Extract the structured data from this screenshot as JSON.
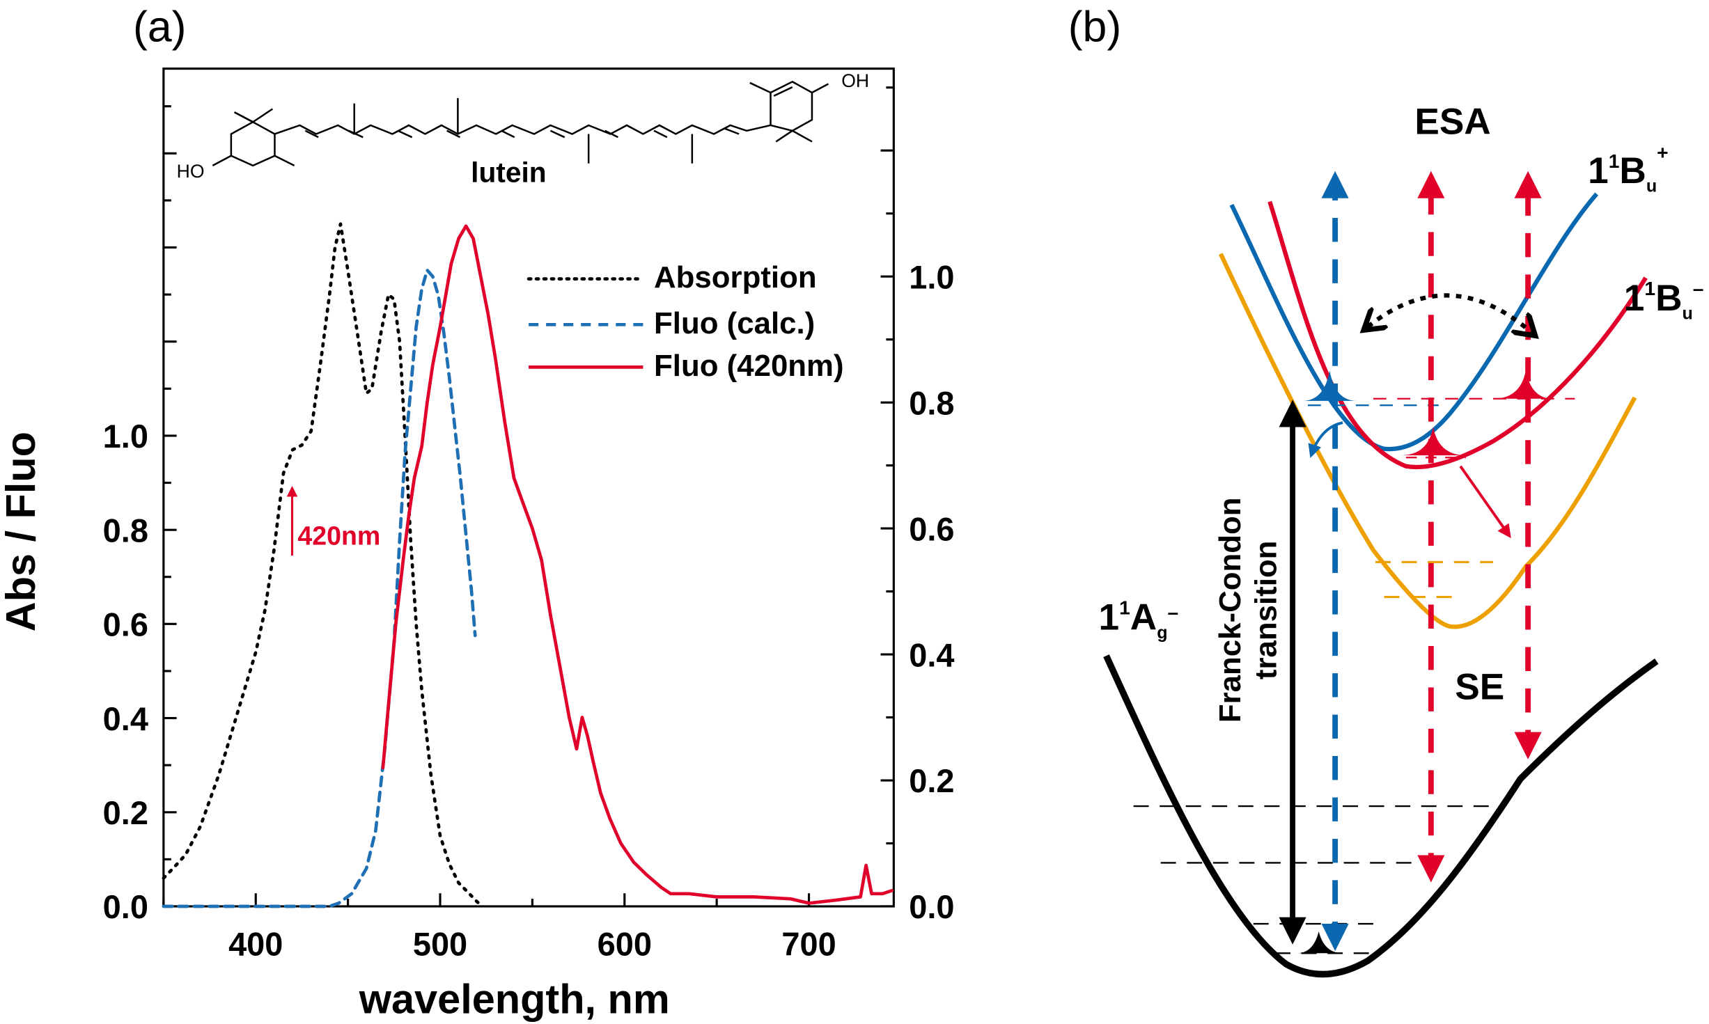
{
  "panels": {
    "a": "(a)",
    "b": "(b)"
  },
  "molecule": {
    "name": "lutein",
    "ho": "HO",
    "oh": "OH"
  },
  "annotation_420": "420nm",
  "colors": {
    "absorption": "#000000",
    "fluo_calc": "#1f6fb5",
    "fluo_420": "#e0002a",
    "orange": "#eea000",
    "blue": "#0a68b0",
    "red": "#e0002a"
  },
  "chart_data": {
    "type": "line",
    "xlabel": "wavelength, nm",
    "ylabel": "Abs / Fluo",
    "xlim": [
      350,
      746
    ],
    "ylim_left": [
      0,
      1.78
    ],
    "ylim_right": [
      0,
      1.33
    ],
    "x_ticks": [
      400,
      500,
      600,
      700
    ],
    "y_ticks_left": [
      "0.0",
      "0.2",
      "0.4",
      "0.6",
      "0.8",
      "1.0"
    ],
    "y_ticks_right": [
      "0.0",
      "0.2",
      "0.4",
      "0.6",
      "0.8",
      "1.0"
    ],
    "legend_position": "top-right",
    "series": [
      {
        "name": "Absorption",
        "axis": "left",
        "style": "dotted",
        "x": [
          350,
          355,
          362,
          370,
          380,
          390,
          400,
          405,
          410,
          415,
          420,
          425,
          430,
          435,
          440,
          443,
          446,
          450,
          455,
          460,
          463,
          468,
          472,
          475,
          478,
          481,
          484,
          487,
          490,
          495,
          500,
          505,
          510,
          515,
          520,
          523
        ],
        "y": [
          0.06,
          0.08,
          0.11,
          0.17,
          0.28,
          0.41,
          0.54,
          0.63,
          0.76,
          0.92,
          0.97,
          0.98,
          1.01,
          1.15,
          1.3,
          1.4,
          1.45,
          1.35,
          1.22,
          1.09,
          1.1,
          1.22,
          1.3,
          1.29,
          1.2,
          1.0,
          0.78,
          0.6,
          0.46,
          0.28,
          0.15,
          0.09,
          0.05,
          0.03,
          0.01,
          0.0
        ]
      },
      {
        "name": "Fluo (calc.)",
        "axis": "right",
        "style": "dashed",
        "x": [
          350,
          400,
          440,
          445,
          452,
          460,
          465,
          470,
          475,
          478,
          481,
          484,
          487,
          490,
          493,
          496,
          499,
          502,
          505,
          508,
          511,
          514,
          517,
          519
        ],
        "y": [
          0,
          0,
          0,
          0.005,
          0.02,
          0.06,
          0.12,
          0.25,
          0.42,
          0.58,
          0.72,
          0.82,
          0.92,
          0.98,
          1.01,
          1.0,
          0.97,
          0.91,
          0.84,
          0.76,
          0.68,
          0.59,
          0.5,
          0.43
        ]
      },
      {
        "name": "Fluo (420nm)",
        "axis": "right",
        "style": "solid",
        "x": [
          469,
          472,
          476,
          480,
          483,
          486,
          490,
          493,
          496,
          500,
          503,
          506,
          510,
          514,
          518,
          522,
          526,
          530,
          535,
          540,
          545,
          550,
          555,
          560,
          565,
          570,
          574,
          577,
          580,
          583,
          587,
          592,
          598,
          605,
          612,
          620,
          625,
          635,
          650,
          670,
          690,
          700,
          715,
          728,
          731,
          734,
          740,
          745
        ],
        "y": [
          0.22,
          0.32,
          0.45,
          0.55,
          0.62,
          0.68,
          0.73,
          0.8,
          0.86,
          0.92,
          0.97,
          1.02,
          1.06,
          1.08,
          1.06,
          1.0,
          0.94,
          0.87,
          0.77,
          0.68,
          0.64,
          0.6,
          0.55,
          0.46,
          0.38,
          0.3,
          0.25,
          0.3,
          0.27,
          0.23,
          0.18,
          0.14,
          0.1,
          0.07,
          0.05,
          0.03,
          0.02,
          0.02,
          0.015,
          0.015,
          0.012,
          0.005,
          0.01,
          0.015,
          0.065,
          0.02,
          0.02,
          0.025
        ]
      }
    ]
  },
  "diagram": {
    "esa": "ESA",
    "se": "SE",
    "fc_line1": "Franck-Condon",
    "fc_line2": "transition",
    "state_bu_plus": {
      "main": "1",
      "sup1": "1",
      "letter": "B",
      "sub": "u",
      "sup2": "+"
    },
    "state_bu_minus": {
      "main": "1",
      "sup1": "1",
      "letter": "B",
      "sub": "u",
      "sup2": "–"
    },
    "state_ag_minus": {
      "main": "1",
      "sup1": "1",
      "letter": "A",
      "sub": "g",
      "sup2": "–"
    }
  }
}
